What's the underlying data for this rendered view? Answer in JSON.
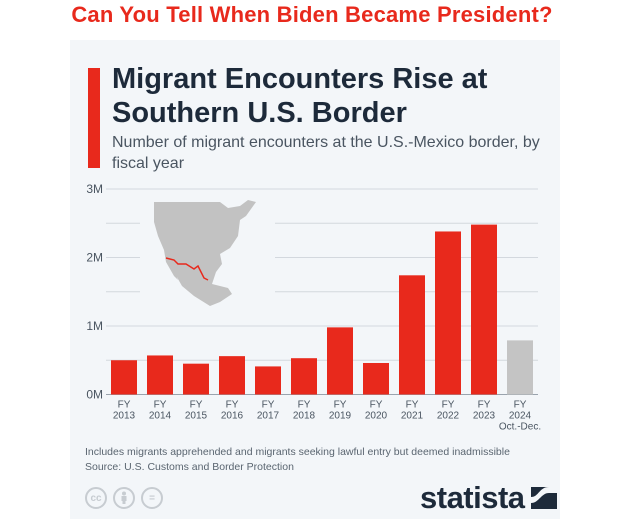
{
  "headline": "Can You Tell When Biden Became President?",
  "card": {
    "title": "Migrant Encounters Rise at Southern U.S. Border",
    "subtitle": "Number of migrant encounters at the U.S.-Mexico border, by fiscal year",
    "note": "Includes migrants apprehended and migrants seeking lawful entry but deemed inadmissible",
    "source": "Source: U.S. Customs and Border Protection",
    "logo": "statista",
    "license_icons": [
      "cc-icon",
      "attribution-icon",
      "no-derivatives-icon"
    ],
    "license_text": [
      "cc",
      "",
      "="
    ]
  },
  "chart_data": {
    "type": "bar",
    "title": "",
    "xlabel": "",
    "ylabel": "",
    "ylim": [
      0,
      3000000
    ],
    "yticks": [
      0,
      1000000,
      2000000,
      3000000
    ],
    "ytick_labels": [
      "0M",
      "1M",
      "2M",
      "3M"
    ],
    "grid": true,
    "categories": [
      "FY 2013",
      "FY 2014",
      "FY 2015",
      "FY 2016",
      "FY 2017",
      "FY 2018",
      "FY 2019",
      "FY 2020",
      "FY 2021",
      "FY 2022",
      "FY 2023",
      "FY 2024 Oct.-Dec."
    ],
    "category_lines": [
      [
        "FY",
        "2013"
      ],
      [
        "FY",
        "2014"
      ],
      [
        "FY",
        "2015"
      ],
      [
        "FY",
        "2016"
      ],
      [
        "FY",
        "2017"
      ],
      [
        "FY",
        "2018"
      ],
      [
        "FY",
        "2019"
      ],
      [
        "FY",
        "2020"
      ],
      [
        "FY",
        "2021"
      ],
      [
        "FY",
        "2022"
      ],
      [
        "FY",
        "2023"
      ],
      [
        "FY",
        "2024",
        "Oct.-Dec."
      ]
    ],
    "values": [
      500000,
      570000,
      450000,
      560000,
      410000,
      530000,
      980000,
      460000,
      1740000,
      2380000,
      2480000,
      790000
    ],
    "colors": {
      "full_year": "#e8291c",
      "partial_year": "#c4c4c4",
      "grid": "#d3d8de",
      "border_line": "#e8291c",
      "map": "#c2c2c2"
    }
  }
}
